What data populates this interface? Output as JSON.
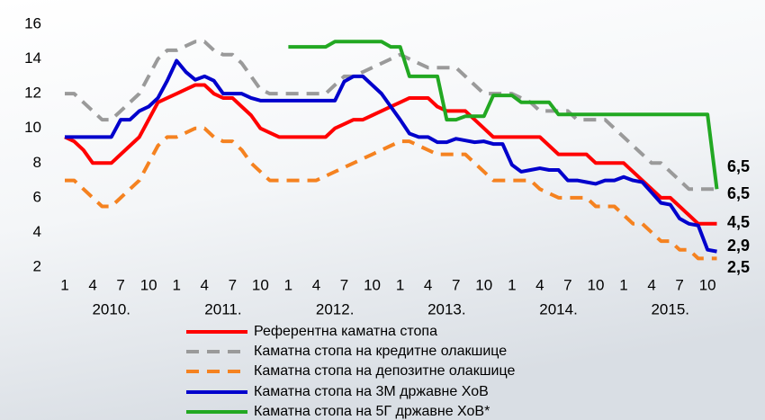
{
  "chart_data": {
    "type": "line",
    "categories": [
      "1",
      null,
      null,
      "4",
      null,
      null,
      "7",
      null,
      null,
      "10",
      null,
      null,
      "1",
      null,
      null,
      "4",
      null,
      null,
      "7",
      null,
      null,
      "10",
      null,
      null,
      "1",
      null,
      null,
      "4",
      null,
      null,
      "7",
      null,
      null,
      "10",
      null,
      null,
      "1",
      null,
      null,
      "4",
      null,
      null,
      "7",
      null,
      null,
      "10",
      null,
      null,
      "1",
      null,
      null,
      "4",
      null,
      null,
      "7",
      null,
      null,
      "10",
      null,
      null,
      "1",
      null,
      null,
      "4",
      null,
      null,
      "7",
      null,
      null,
      "10",
      null
    ],
    "year_labels": [
      "2010.",
      "2011.",
      "2012.",
      "2013.",
      "2014.",
      "2015."
    ],
    "ylim": [
      2,
      16
    ],
    "yticks": [
      2,
      4,
      6,
      8,
      10,
      12,
      14,
      16
    ],
    "grid": false,
    "series": [
      {
        "name": "Референтна каматна стопа",
        "color": "#ff0000",
        "dash": false,
        "end_label": "4,5",
        "values": [
          9.5,
          9.25,
          8.75,
          8,
          8,
          8,
          8.5,
          9,
          9.5,
          10.5,
          11.5,
          11.75,
          12,
          12.25,
          12.5,
          12.5,
          12,
          11.75,
          11.75,
          11.25,
          10.75,
          10,
          9.75,
          9.5,
          9.5,
          9.5,
          9.5,
          9.5,
          9.5,
          10,
          10.25,
          10.5,
          10.5,
          10.75,
          11,
          11.25,
          11.5,
          11.75,
          11.75,
          11.75,
          11.25,
          11,
          11,
          11,
          10.5,
          10,
          9.5,
          9.5,
          9.5,
          9.5,
          9.5,
          9.5,
          9,
          8.5,
          8.5,
          8.5,
          8.5,
          8,
          8,
          8,
          8,
          7.5,
          7,
          6.5,
          6,
          6,
          5.5,
          5,
          4.5,
          4.5,
          4.5
        ]
      },
      {
        "name": "Каматна стопа на кредитне олакшице",
        "color": "#9a9a9a",
        "dash": true,
        "end_label": "6,5",
        "values": [
          12,
          12,
          11.5,
          11,
          10.5,
          10.5,
          11,
          11.5,
          12,
          13,
          14,
          14.5,
          14.5,
          14.75,
          15,
          15,
          14.5,
          14.25,
          14.25,
          13.75,
          13,
          12.25,
          12,
          12,
          12,
          12,
          12,
          12,
          12,
          12.5,
          13,
          13,
          13.25,
          13.5,
          13.75,
          14,
          14.25,
          14,
          13.75,
          13.5,
          13.5,
          13.5,
          13.5,
          13,
          12.5,
          12,
          12,
          12,
          12,
          11.75,
          11.5,
          11,
          11,
          11,
          11,
          10.5,
          10.5,
          10.5,
          10.5,
          10,
          9.5,
          9,
          8.5,
          8,
          8,
          7.5,
          7,
          6.5,
          6.5,
          6.5,
          6.5
        ]
      },
      {
        "name": "Каматна стопа на депозитне олакшице",
        "color": "#f58220",
        "dash": true,
        "end_label": "2,5",
        "values": [
          7,
          7,
          6.5,
          6,
          5.5,
          5.5,
          6,
          6.5,
          7,
          8,
          9,
          9.5,
          9.5,
          9.75,
          10,
          10,
          9.5,
          9.25,
          9.25,
          8.75,
          8,
          7.5,
          7,
          7,
          7,
          7,
          7,
          7,
          7.25,
          7.5,
          7.75,
          8,
          8.25,
          8.5,
          8.75,
          9,
          9.25,
          9.25,
          9,
          8.75,
          8.5,
          8.5,
          8.5,
          8.5,
          8,
          7.5,
          7,
          7,
          7,
          7,
          7,
          6.5,
          6.25,
          6,
          6,
          6,
          6,
          5.5,
          5.5,
          5.5,
          5,
          4.5,
          4.5,
          4,
          3.5,
          3.5,
          3,
          3,
          2.5,
          2.5,
          2.5
        ]
      },
      {
        "name": "Каматна стопа на 3М државне ХоВ",
        "color": "#0000cc",
        "dash": false,
        "end_label": "2,9",
        "values": [
          9.5,
          9.5,
          9.5,
          9.5,
          9.5,
          9.5,
          10.5,
          10.5,
          11,
          11.25,
          11.75,
          12.75,
          13.9,
          13.25,
          12.8,
          13,
          12.75,
          12,
          12,
          12,
          11.75,
          11.6,
          11.6,
          11.6,
          11.6,
          11.6,
          11.6,
          11.6,
          11.6,
          11.6,
          12.7,
          13,
          13,
          12.5,
          12,
          11.25,
          10.5,
          9.7,
          9.5,
          9.5,
          9.2,
          9.2,
          9.4,
          9.3,
          9.2,
          9.25,
          9.1,
          9.1,
          7.9,
          7.5,
          7.6,
          7.7,
          7.6,
          7.6,
          7,
          7,
          6.9,
          6.8,
          7,
          7,
          7.2,
          7,
          6.9,
          6.3,
          5.7,
          5.6,
          4.8,
          4.5,
          4.4,
          3,
          2.9
        ]
      },
      {
        "name": "Каматна стопа на 5Г државне ХоВ*",
        "color": "#22a822",
        "dash": false,
        "end_label": "6,5",
        "values": [
          null,
          null,
          null,
          null,
          null,
          null,
          null,
          null,
          null,
          null,
          null,
          null,
          null,
          null,
          null,
          null,
          null,
          null,
          null,
          null,
          null,
          null,
          null,
          null,
          14.7,
          14.7,
          14.7,
          14.7,
          14.7,
          15,
          15,
          15,
          15,
          15,
          15,
          14.7,
          14.7,
          13,
          13,
          13,
          13,
          10.5,
          10.5,
          10.7,
          10.7,
          10.7,
          11.9,
          11.9,
          11.9,
          11.5,
          11.5,
          11.5,
          11.5,
          10.8,
          10.8,
          10.8,
          10.8,
          10.8,
          10.8,
          10.8,
          10.8,
          10.8,
          10.8,
          10.8,
          10.8,
          10.8,
          10.8,
          10.8,
          10.8,
          10.8,
          6.5
        ]
      }
    ]
  }
}
